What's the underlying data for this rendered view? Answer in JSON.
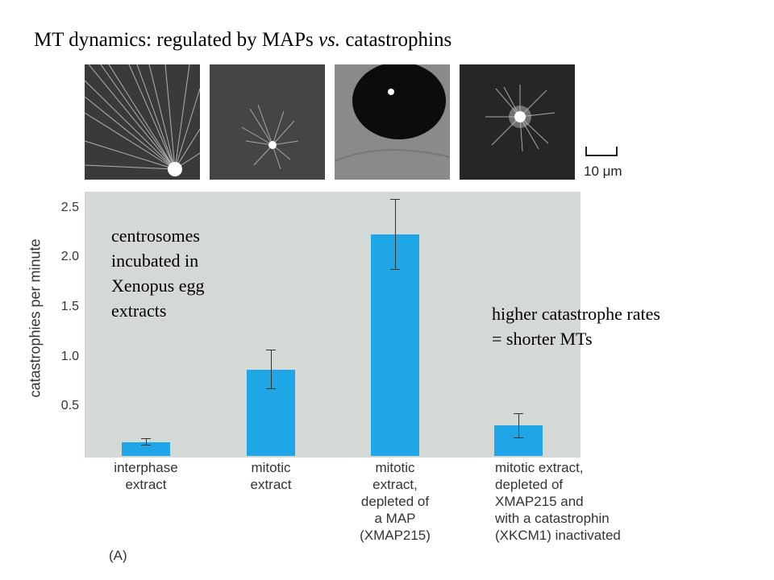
{
  "title": {
    "main": "MT dynamics: regulated by MAPs",
    "vs": "vs.",
    "rest": "catastrophins"
  },
  "micrographs": [
    {
      "name": "micrograph-interphase"
    },
    {
      "name": "micrograph-mitotic"
    },
    {
      "name": "micrograph-depleted-map"
    },
    {
      "name": "micrograph-catastrophin-inactivated"
    }
  ],
  "scale_bar": {
    "label": "10 μm"
  },
  "annotations": {
    "left": "centrosomes\nincubated in\nXenopus egg\nextracts",
    "right": "higher catastrophe rates\n= shorter MTs"
  },
  "panel_label": "(A)",
  "colors": {
    "bar": "#1fa6e6",
    "panel_bg": "#d5d9d5"
  },
  "chart_data": {
    "type": "bar",
    "ylabel": "catastrophies per minute",
    "yticks": [
      "0.5",
      "1.0",
      "1.5",
      "2.0",
      "2.5"
    ],
    "ylim": [
      0,
      2.65
    ],
    "categories": [
      "interphase\nextract",
      "mitotic\nextract",
      "mitotic\nextract,\ndepleted of\na MAP\n(XMAP215)",
      "mitotic extract,\ndepleted of\nXMAP215 and\nwith a catastrophin\n(XKCM1) inactivated"
    ],
    "values": [
      0.14,
      0.87,
      2.23,
      0.31
    ],
    "error_low": [
      0.11,
      0.68,
      1.88,
      0.19
    ],
    "error_high": [
      0.18,
      1.07,
      2.59,
      0.43
    ],
    "grid": false
  }
}
